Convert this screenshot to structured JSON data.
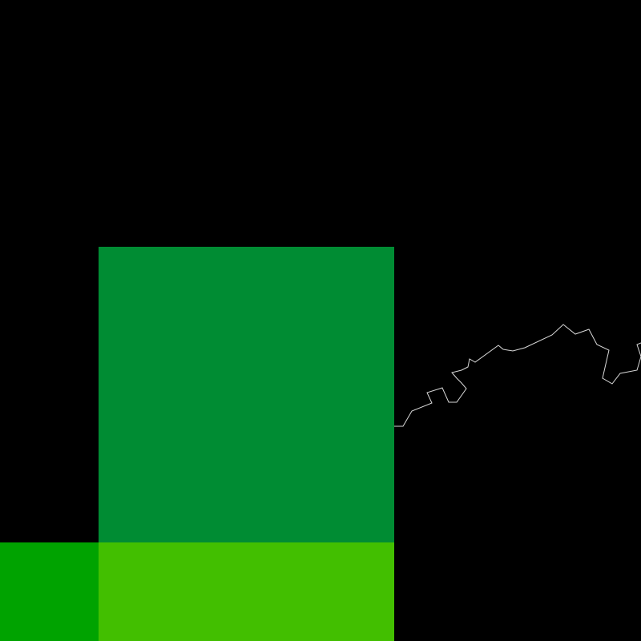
{
  "map": {
    "background_color": "#000000",
    "regions": [
      {
        "id": "main-region",
        "color": "#008C33"
      },
      {
        "id": "bottom-left-region",
        "color": "#00A300"
      },
      {
        "id": "bottom-center-region",
        "color": "#42BF00"
      }
    ],
    "boundary_line": {
      "color": "#D9D9D9",
      "description_visible": false
    }
  }
}
